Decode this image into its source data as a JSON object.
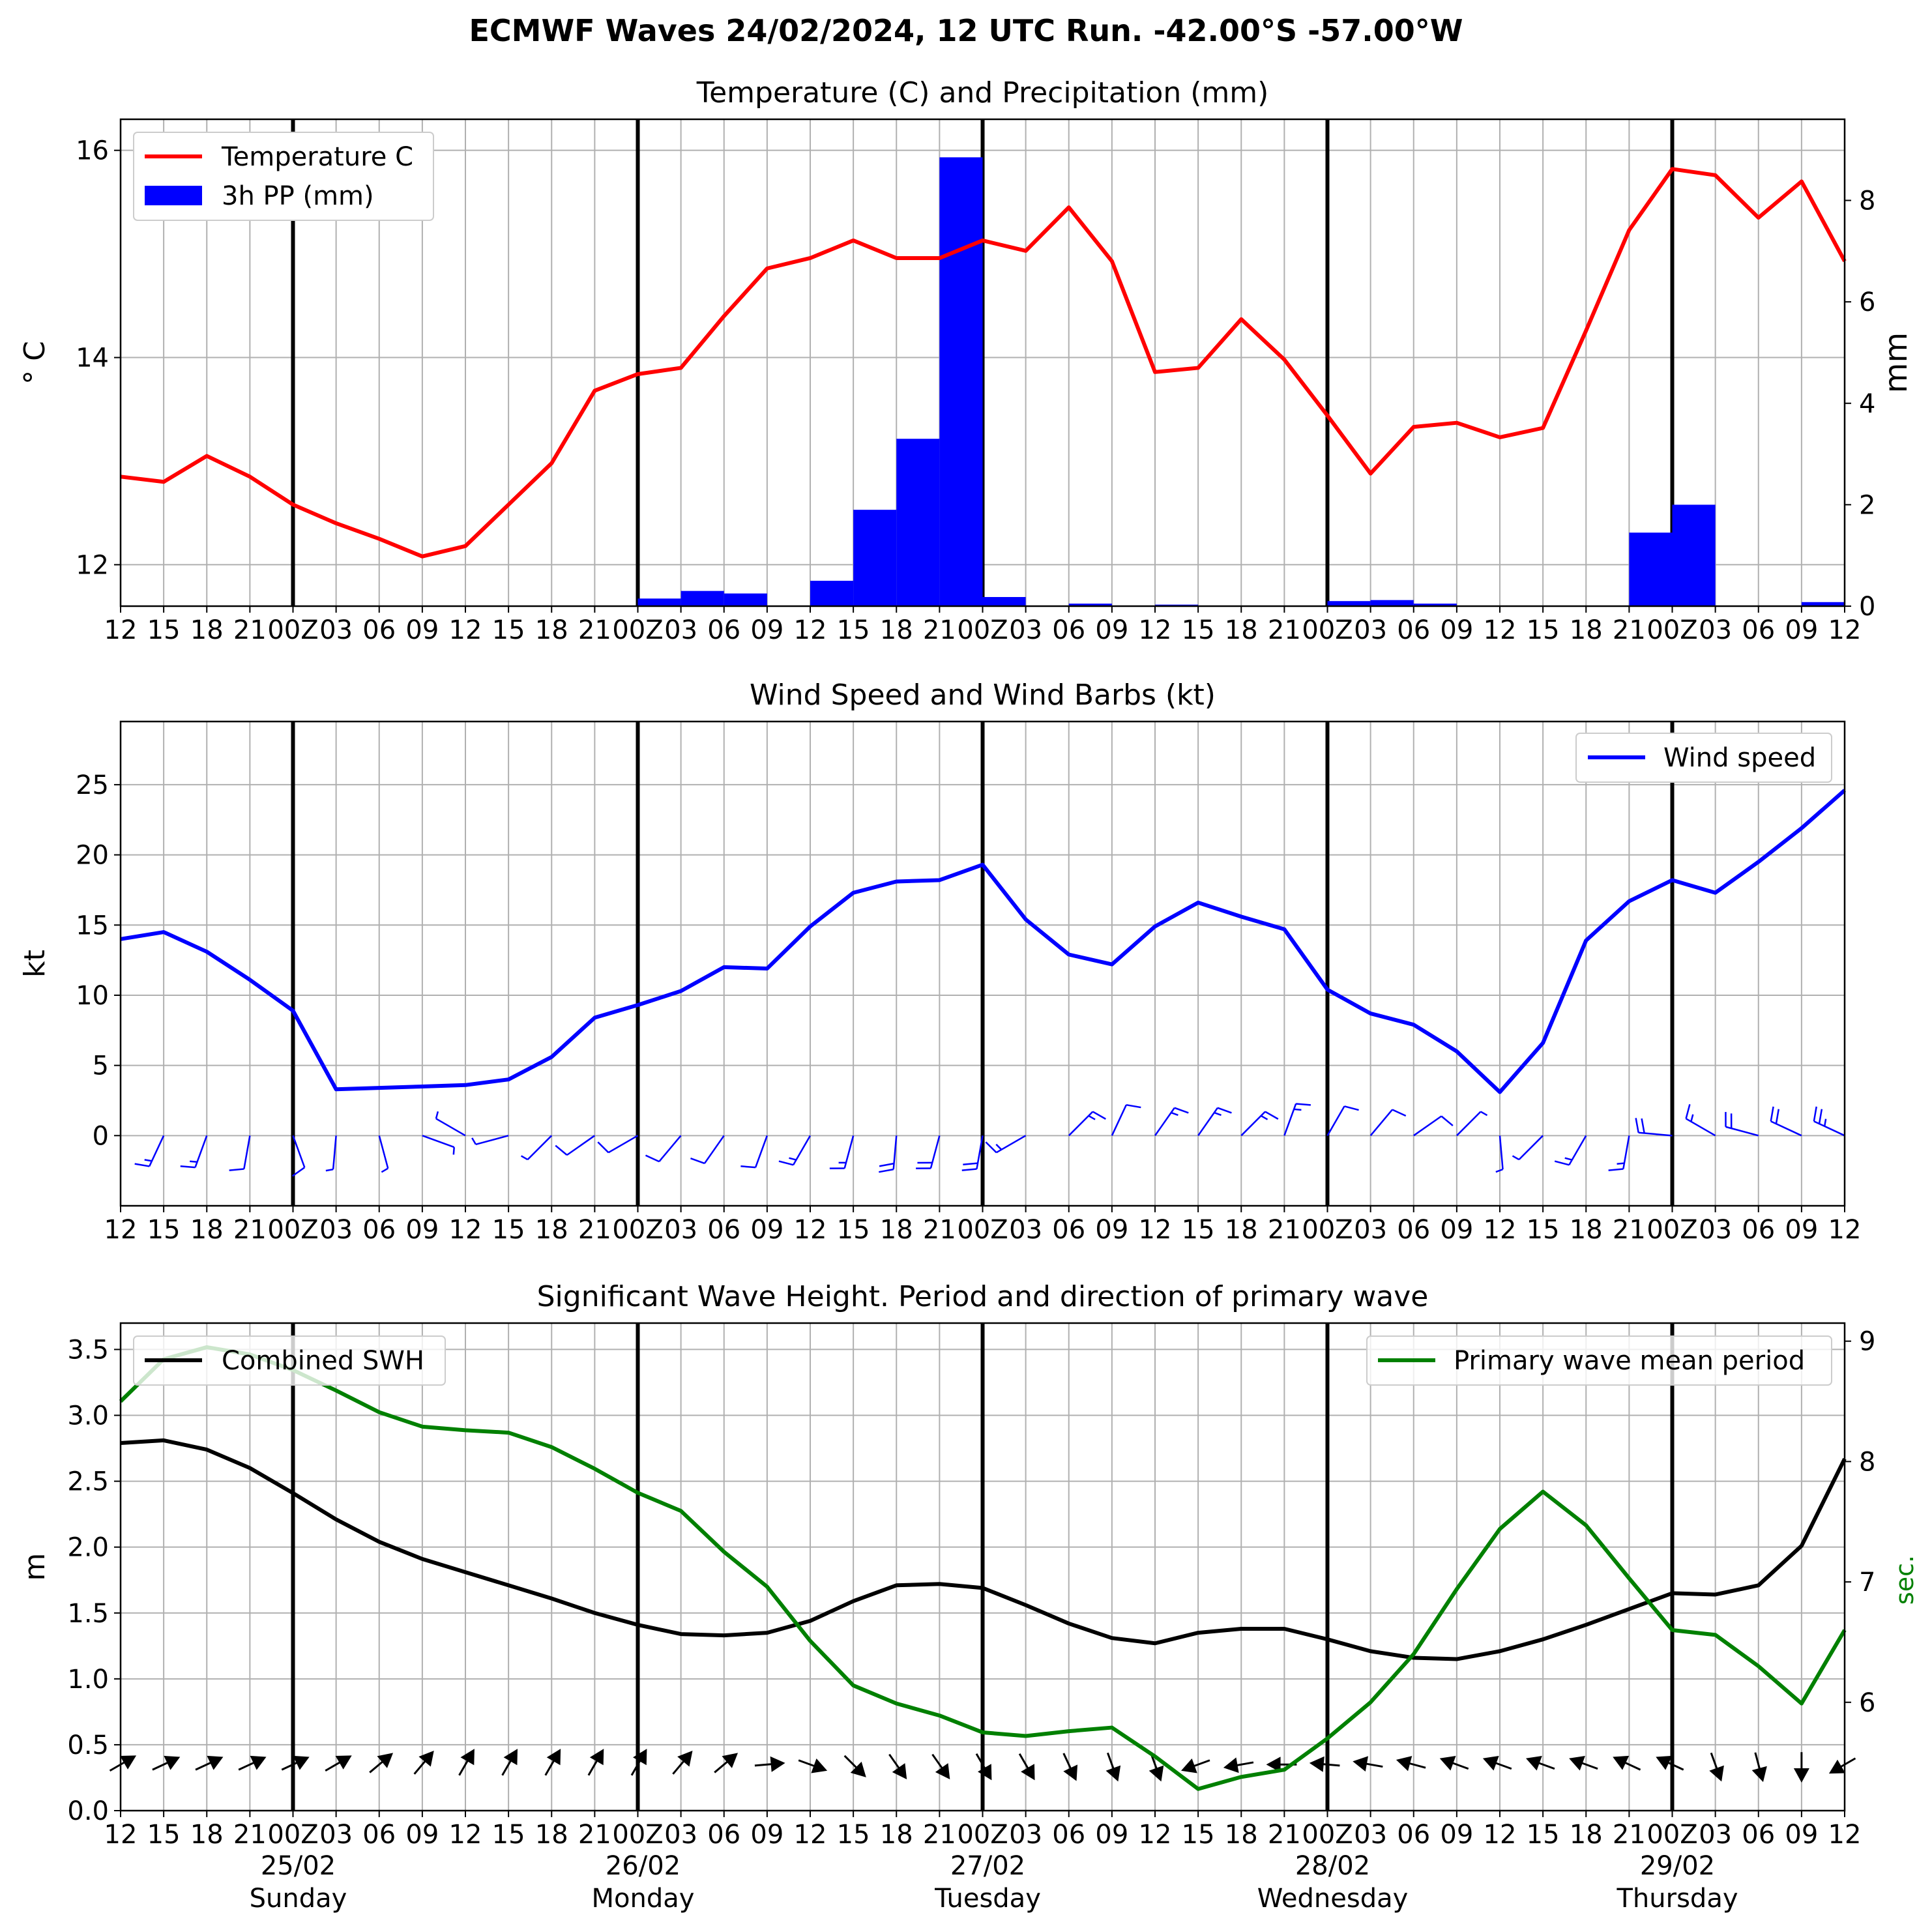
{
  "main_title": "ECMWF Waves 24/02/2024, 12 UTC Run. -42.00°S -57.00°W",
  "x_ticks": [
    "12",
    "15",
    "18",
    "21",
    "00Z",
    "03",
    "06",
    "09",
    "12",
    "15",
    "18",
    "21",
    "00Z",
    "03",
    "06",
    "09",
    "12",
    "15",
    "18",
    "21",
    "00Z",
    "03",
    "06",
    "09",
    "12",
    "15",
    "18",
    "21",
    "00Z",
    "03",
    "06",
    "09",
    "12",
    "15",
    "18",
    "21",
    "00Z",
    "03",
    "06",
    "09",
    "12"
  ],
  "day_labels": [
    {
      "date": "25/02",
      "day": "Sunday"
    },
    {
      "date": "26/02",
      "day": "Monday"
    },
    {
      "date": "27/02",
      "day": "Tuesday"
    },
    {
      "date": "28/02",
      "day": "Wednesday"
    },
    {
      "date": "29/02",
      "day": "Thursday"
    }
  ],
  "colors": {
    "temperature": "#ff0000",
    "precip": "#0000ff",
    "wind": "#0000ff",
    "swh": "#000000",
    "period": "#008000",
    "grid": "#b0b0b0",
    "day_line": "#000000"
  },
  "chart_data": [
    {
      "type": "line",
      "title": "Temperature (C) and Precipitation (mm)",
      "ylabel": "° C",
      "ylabel_right": "mm",
      "x_step_hours": 3,
      "ylim": [
        11.6,
        16.3
      ],
      "yticks": [
        12,
        14,
        16
      ],
      "ylim_right": [
        0,
        9.6
      ],
      "yticks_right": [
        0,
        2,
        4,
        6,
        8
      ],
      "legend_position": "top-left",
      "grid": true,
      "series": [
        {
          "name": "Temperature C",
          "kind": "line",
          "axis": "left",
          "values": [
            12.85,
            12.8,
            13.05,
            12.85,
            12.58,
            12.4,
            12.25,
            12.08,
            12.18,
            12.58,
            12.98,
            13.68,
            13.84,
            13.9,
            14.4,
            14.86,
            14.96,
            15.13,
            14.96,
            14.96,
            15.13,
            15.03,
            15.45,
            14.93,
            13.86,
            13.9,
            14.37,
            13.98,
            13.44,
            12.88,
            13.33,
            13.37,
            13.23,
            13.32,
            14.26,
            15.23,
            15.82,
            15.76,
            15.35,
            15.7,
            14.93
          ]
        },
        {
          "name": "3h PP (mm)",
          "kind": "bar",
          "axis": "right",
          "values": [
            0,
            0,
            0,
            0,
            0,
            0,
            0,
            0,
            0,
            0,
            0,
            0,
            0.15,
            0.3,
            0.25,
            0,
            0.5,
            1.9,
            3.3,
            8.85,
            0.18,
            0,
            0.05,
            0,
            0.03,
            0,
            0,
            0,
            0.1,
            0.12,
            0.05,
            0,
            0,
            0,
            0,
            1.45,
            2.0,
            0,
            0,
            0.08
          ]
        }
      ]
    },
    {
      "type": "line",
      "title": "Wind Speed and Wind Barbs (kt)",
      "ylabel": "kt",
      "x_step_hours": 3,
      "ylim": [
        -5,
        29.5
      ],
      "yticks": [
        0,
        5,
        10,
        15,
        20,
        25
      ],
      "legend_position": "top-right",
      "grid": true,
      "series": [
        {
          "name": "Wind speed",
          "values": [
            14.0,
            14.5,
            13.1,
            11.1,
            8.9,
            3.3,
            3.4,
            3.5,
            3.6,
            4.0,
            5.6,
            8.4,
            9.3,
            10.3,
            12.0,
            11.9,
            14.9,
            17.3,
            18.1,
            18.2,
            19.3,
            15.4,
            12.9,
            12.2,
            14.9,
            16.6,
            15.6,
            14.7,
            10.4,
            8.7,
            7.9,
            6.0,
            3.1,
            6.6,
            13.9,
            16.7,
            18.2,
            17.3,
            19.5,
            21.9,
            24.6
          ]
        }
      ],
      "wind_barb_from_deg": [
        200,
        205,
        200,
        190,
        160,
        185,
        165,
        110,
        300,
        255,
        225,
        235,
        240,
        220,
        215,
        200,
        210,
        195,
        185,
        195,
        190,
        240,
        45,
        25,
        35,
        35,
        45,
        20,
        30,
        40,
        55,
        45,
        175,
        225,
        210,
        190,
        275,
        300,
        285,
        295,
        295
      ]
    },
    {
      "type": "line",
      "title": "Significant Wave Height. Period and direction of primary wave",
      "ylabel": "m",
      "ylabel_right": "sec.",
      "x_step_hours": 3,
      "ylim": [
        0,
        3.7
      ],
      "yticks": [
        0.0,
        0.5,
        1.0,
        1.5,
        2.0,
        2.5,
        3.0,
        3.5
      ],
      "ylim_right": [
        5.1,
        9.15
      ],
      "yticks_right": [
        6,
        7,
        8,
        9
      ],
      "legend_position": "top-left / top-right",
      "grid": true,
      "series": [
        {
          "name": "Combined SWH",
          "axis": "left",
          "values": [
            2.79,
            2.81,
            2.74,
            2.6,
            2.41,
            2.21,
            2.04,
            1.91,
            1.81,
            1.71,
            1.61,
            1.5,
            1.41,
            1.34,
            1.33,
            1.35,
            1.44,
            1.59,
            1.71,
            1.72,
            1.69,
            1.56,
            1.42,
            1.31,
            1.27,
            1.35,
            1.38,
            1.38,
            1.3,
            1.21,
            1.16,
            1.15,
            1.21,
            1.3,
            1.41,
            1.53,
            1.65,
            1.64,
            1.71,
            2.01,
            2.67
          ]
        },
        {
          "name": "Primary wave mean period",
          "axis": "right",
          "values": [
            8.5,
            8.85,
            8.95,
            8.89,
            8.76,
            8.59,
            8.41,
            8.29,
            8.26,
            8.24,
            8.12,
            7.94,
            7.74,
            7.59,
            7.25,
            6.96,
            6.51,
            6.14,
            5.99,
            5.89,
            5.75,
            5.72,
            5.76,
            5.79,
            5.55,
            5.28,
            5.38,
            5.44,
            5.7,
            6.0,
            6.4,
            6.94,
            7.44,
            7.75,
            7.47,
            7.03,
            6.6,
            6.56,
            6.3,
            5.99,
            6.6
          ]
        }
      ],
      "wave_dir_from_deg": [
        240,
        245,
        245,
        245,
        245,
        240,
        230,
        220,
        210,
        210,
        210,
        210,
        210,
        220,
        230,
        265,
        290,
        315,
        325,
        325,
        330,
        330,
        335,
        340,
        340,
        70,
        80,
        90,
        95,
        100,
        105,
        110,
        110,
        110,
        110,
        115,
        115,
        340,
        345,
        0,
        60
      ]
    }
  ]
}
